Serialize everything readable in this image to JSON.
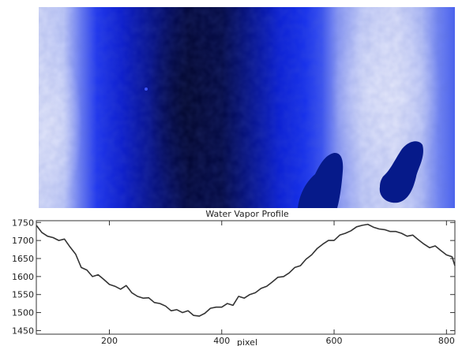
{
  "image_panel": {
    "colormap": [
      "#e2e6fa",
      "#bcc6f8",
      "#6678f4",
      "#1a30f0",
      "#0717b8",
      "#01063a"
    ]
  },
  "chart_data": {
    "type": "line",
    "title": "Water Vapor Profile",
    "xlabel": "pixel",
    "ylabel": "",
    "xlim": [
      70,
      815
    ],
    "ylim": [
      1440,
      1755
    ],
    "xticks": [
      200,
      400,
      600,
      800
    ],
    "yticks": [
      1450,
      1500,
      1550,
      1600,
      1650,
      1700,
      1750
    ],
    "grid": false,
    "line_color": "#333333",
    "series": [
      {
        "x": [
          70,
          80,
          90,
          100,
          110,
          120,
          130,
          140,
          150,
          160,
          170,
          180,
          190,
          200,
          210,
          220,
          230,
          240,
          250,
          260,
          270,
          280,
          290,
          300,
          310,
          320,
          330,
          340,
          350,
          360,
          370,
          380,
          390,
          400,
          410,
          420,
          430,
          440,
          450,
          460,
          470,
          480,
          490,
          500,
          510,
          520,
          530,
          540,
          550,
          560,
          570,
          580,
          590,
          600,
          610,
          620,
          630,
          640,
          650,
          660,
          670,
          680,
          690,
          700,
          710,
          720,
          730,
          740,
          750,
          760,
          770,
          780,
          790,
          800,
          810,
          815
        ],
        "y": [
          1742,
          1722,
          1712,
          1708,
          1700,
          1704,
          1682,
          1662,
          1625,
          1618,
          1600,
          1605,
          1592,
          1578,
          1573,
          1565,
          1575,
          1555,
          1545,
          1540,
          1541,
          1528,
          1525,
          1518,
          1505,
          1508,
          1500,
          1505,
          1492,
          1490,
          1498,
          1512,
          1515,
          1515,
          1525,
          1520,
          1545,
          1540,
          1550,
          1555,
          1567,
          1573,
          1585,
          1598,
          1600,
          1610,
          1625,
          1630,
          1648,
          1660,
          1678,
          1690,
          1700,
          1700,
          1715,
          1720,
          1727,
          1738,
          1742,
          1745,
          1737,
          1732,
          1730,
          1725,
          1725,
          1720,
          1712,
          1715,
          1702,
          1690,
          1680,
          1685,
          1672,
          1660,
          1655,
          1630
        ]
      }
    ]
  }
}
